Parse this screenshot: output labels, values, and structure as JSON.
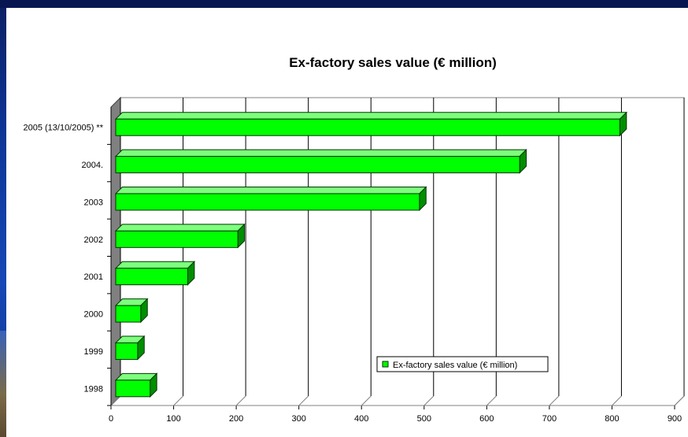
{
  "chart_data": {
    "type": "bar",
    "orientation": "horizontal",
    "title": "Ex-factory sales value (€ million)",
    "categories": [
      "2005 (13/10/2005) **",
      "2004.",
      "2003",
      "2002",
      "2001",
      "2000",
      "1999",
      "1998"
    ],
    "series": [
      {
        "name": "Ex-factory sales value (€ million)",
        "values": [
          805,
          645,
          485,
          195,
          115,
          40,
          35,
          55
        ]
      }
    ],
    "x_ticks": [
      "0",
      "100",
      "200",
      "300",
      "400",
      "500",
      "600",
      "700",
      "800",
      "900"
    ],
    "xlim": [
      0,
      900
    ],
    "grid": true,
    "legend_position": "bottom-right",
    "colors": {
      "bar_front": "#00ff00",
      "bar_top": "#7dff7d",
      "bar_side": "#008f00",
      "bar_edge": "#003300",
      "left_wall": "#808080",
      "gridline": "#000000"
    }
  }
}
